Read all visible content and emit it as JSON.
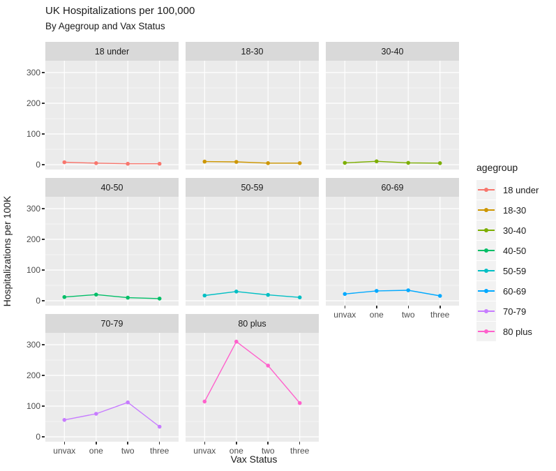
{
  "chart_data": {
    "type": "line",
    "title": "UK Hospitalizations per 100,000",
    "subtitle": "By Agegroup and Vax Status",
    "xlabel": "Vax Status",
    "ylabel": "Hospitalizations per 100K",
    "facet_variable": "agegroup",
    "facet_layout": "3 columns x 3 rows, 8 panels",
    "legend_title": "agegroup",
    "legend_position": "right",
    "grid": "on",
    "x_categories": [
      "unvax",
      "one",
      "two",
      "three"
    ],
    "y_ticks": [
      "0",
      "100",
      "200",
      "300"
    ],
    "ylim": [
      -15,
      340
    ],
    "panel_background": "#EBEBEB",
    "strip_background": "#D9D9D9",
    "gridline_color": "#FFFFFF",
    "tick_text_color": "#4D4D4D",
    "series": [
      {
        "name": "18 under",
        "color": "#F8766D",
        "values": [
          8,
          5,
          3,
          3
        ]
      },
      {
        "name": "18-30",
        "color": "#CD9600",
        "values": [
          10,
          9,
          5,
          5
        ]
      },
      {
        "name": "30-40",
        "color": "#7CAE00",
        "values": [
          6,
          11,
          6,
          5
        ]
      },
      {
        "name": "40-50",
        "color": "#00BE67",
        "values": [
          12,
          20,
          10,
          7
        ]
      },
      {
        "name": "50-59",
        "color": "#00BFC4",
        "values": [
          17,
          30,
          19,
          11
        ]
      },
      {
        "name": "60-69",
        "color": "#00A9FF",
        "values": [
          22,
          32,
          34,
          16
        ]
      },
      {
        "name": "70-79",
        "color": "#C77CFF",
        "values": [
          55,
          75,
          112,
          33
        ]
      },
      {
        "name": "80 plus",
        "color": "#FF61CC",
        "values": [
          115,
          310,
          232,
          110
        ]
      }
    ]
  }
}
